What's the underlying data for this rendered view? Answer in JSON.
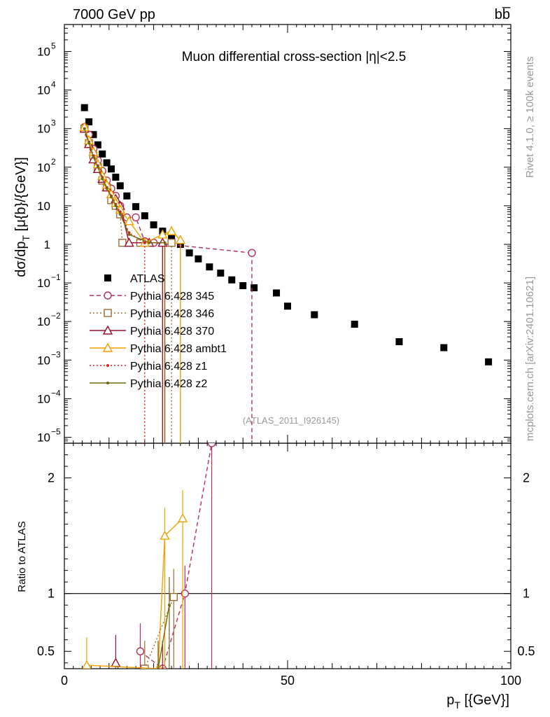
{
  "header": {
    "energy_label": "7000 GeV pp",
    "process_label": "bb̅",
    "rivet_label": "Rivet 4.1.0, ≥ 100k events",
    "mcplots_label": "mcplots.cern.ch [arXiv:2401.10621]",
    "analysis_id": "(ATLAS_2011_I926145)"
  },
  "chart_data": [
    {
      "type": "scatter",
      "title": "Muon differential cross-section |η|<2.5",
      "ylabel": "dσ/dp_T [μb/GeV]",
      "ylabel_main": "dσ/dp",
      "ylabel_sub": "T",
      "ylabel_units": " [μ{b}/{GeV}]",
      "yscale": "log",
      "xlim": [
        0,
        100
      ],
      "ylim": [
        7e-06,
        500000
      ],
      "y_ticks": [
        {
          "v": 100000,
          "label": "10",
          "exp": "5"
        },
        {
          "v": 10000,
          "label": "10",
          "exp": "4"
        },
        {
          "v": 1000,
          "label": "10",
          "exp": "3"
        },
        {
          "v": 100,
          "label": "10",
          "exp": "2"
        },
        {
          "v": 10,
          "label": "10",
          "exp": ""
        },
        {
          "v": 1,
          "label": "1",
          "exp": ""
        },
        {
          "v": 0.1,
          "label": "10",
          "exp": "−1"
        },
        {
          "v": 0.01,
          "label": "10",
          "exp": "−2"
        },
        {
          "v": 0.001,
          "label": "10",
          "exp": "−3"
        },
        {
          "v": 0.0001,
          "label": "10",
          "exp": "−4"
        },
        {
          "v": 1e-05,
          "label": "10",
          "exp": "−5"
        }
      ],
      "series": [
        {
          "name": "ATLAS",
          "color": "#000000",
          "style": "data",
          "marker": "square",
          "x": [
            4.5,
            5.5,
            6.5,
            7.5,
            8.5,
            9.5,
            10.5,
            11.5,
            12.5,
            14,
            16,
            18,
            20,
            22,
            24,
            26,
            28,
            30,
            32.5,
            35,
            37.5,
            40,
            42.5,
            47.5,
            50,
            56,
            65,
            75,
            85,
            95
          ],
          "y": [
            3500,
            1500,
            700,
            380,
            220,
            130,
            90,
            55,
            33,
            18,
            9.5,
            5.5,
            3.2,
            2.2,
            1.5,
            1.0,
            0.6,
            0.42,
            0.26,
            0.18,
            0.12,
            0.085,
            0.075,
            0.055,
            0.025,
            0.015,
            0.0085,
            0.003,
            0.0021,
            0.0009
          ]
        },
        {
          "name": "Pythia 6.428 345",
          "color": "#b33055",
          "style": "dashed",
          "marker": "circle",
          "x": [
            4.5,
            5.5,
            6.5,
            7.5,
            8.5,
            9.5,
            10.5,
            11.5,
            12.5,
            14,
            16,
            18,
            20,
            42
          ],
          "y": [
            1100,
            700,
            300,
            150,
            80,
            45,
            28,
            18,
            10,
            5,
            5,
            1.2,
            1.1,
            0.6
          ]
        },
        {
          "name": "Pythia 6.428 346",
          "color": "#9c6b32",
          "style": "dotted",
          "marker": "square-open",
          "x": [
            4.5,
            5.5,
            6.5,
            7.5,
            8.5,
            9.5,
            10.5,
            11.5,
            12.5,
            13,
            17,
            24
          ],
          "y": [
            1000,
            420,
            200,
            100,
            45,
            30,
            14,
            10,
            6,
            1.1,
            1.1,
            1.1
          ]
        },
        {
          "name": "Pythia 6.428 370",
          "color": "#9a0e2a",
          "style": "solid",
          "marker": "triangle-open",
          "x": [
            4.5,
            5.5,
            6.5,
            7.5,
            8.5,
            9.5,
            10.5,
            11.5,
            12.5,
            14.5,
            19,
            22
          ],
          "y": [
            1000,
            400,
            160,
            90,
            50,
            30,
            20,
            15,
            10,
            1.1,
            1.1,
            1.1
          ]
        },
        {
          "name": "Pythia 6.428 ambt1",
          "color": "#f0a000",
          "style": "solid",
          "marker": "triangle-open",
          "x": [
            4.5,
            5.5,
            6.5,
            7.5,
            8.5,
            9.5,
            10.5,
            11.5,
            12.5,
            14.5,
            18,
            22,
            24,
            26
          ],
          "y": [
            1100,
            500,
            250,
            120,
            60,
            35,
            20,
            12,
            8,
            4,
            1.1,
            1.8,
            2.2,
            1.3
          ]
        },
        {
          "name": "Pythia 6.428 z1",
          "color": "#d02020",
          "style": "dotted",
          "marker": "dot",
          "x": [
            4.5,
            5.5,
            6.5,
            7.5,
            8.5,
            9.5,
            10.5,
            11.5,
            12.5,
            14.5,
            18
          ],
          "y": [
            1000,
            450,
            200,
            110,
            55,
            30,
            18,
            11,
            7,
            2,
            1.1
          ]
        },
        {
          "name": "Pythia 6.428 z2",
          "color": "#6f6a10",
          "style": "solid",
          "marker": "dot",
          "x": [
            4.5,
            5.5,
            6.5,
            7.5,
            8.5,
            9.5,
            10.5,
            11.5,
            12.5,
            14.5,
            19,
            22.5
          ],
          "y": [
            1000,
            420,
            180,
            100,
            50,
            28,
            17,
            10,
            6,
            1.8,
            1.1,
            1.1
          ]
        }
      ]
    },
    {
      "type": "line",
      "title": "",
      "xlabel": "p_T [GeV]",
      "xlabel_main": "p",
      "xlabel_sub": "T",
      "xlabel_units": " [{GeV}]",
      "ylabel": "Ratio to ATLAS",
      "xlim": [
        0,
        100
      ],
      "ylim": [
        0.35,
        2.3
      ],
      "x_ticks": [
        0,
        50,
        100
      ],
      "y_ticks": [
        0.5,
        1,
        2
      ],
      "reference": 1,
      "series": [
        {
          "name": "Pythia 6.428 345",
          "color": "#b33055",
          "style": "dashed",
          "marker": "circle",
          "x": [
            17,
            22,
            27,
            33
          ],
          "y": [
            0.5,
            0.35,
            1.0,
            2.3
          ]
        },
        {
          "name": "Pythia 6.428 346",
          "color": "#9c6b32",
          "style": "dotted",
          "marker": "square-open",
          "x": [
            18,
            24.5
          ],
          "y": [
            0.35,
            0.97
          ]
        },
        {
          "name": "Pythia 6.428 370",
          "color": "#9a0e2a",
          "style": "solid",
          "marker": "triangle-open",
          "x": [
            11.5
          ],
          "y": [
            0.4
          ]
        },
        {
          "name": "Pythia 6.428 ambt1",
          "color": "#f0a000",
          "style": "solid",
          "marker": "triangle-open",
          "x": [
            5,
            21,
            22.5,
            26.5
          ],
          "y": [
            0.38,
            0.35,
            1.5,
            1.65
          ]
        },
        {
          "name": "Pythia 6.428 z1",
          "color": "#d02020",
          "style": "dotted",
          "marker": "dot",
          "x": [
            22
          ],
          "y": [
            0.35
          ]
        },
        {
          "name": "Pythia 6.428 z2",
          "color": "#6f6a10",
          "style": "solid",
          "marker": "dot",
          "x": [
            21,
            23.5
          ],
          "y": [
            0.35,
            0.9
          ]
        }
      ]
    }
  ]
}
